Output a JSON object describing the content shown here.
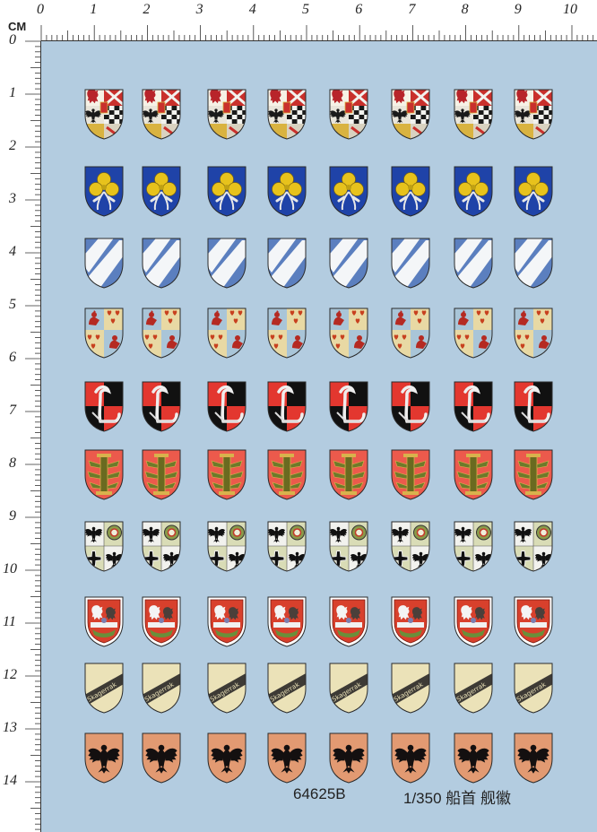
{
  "ruler": {
    "unit": "CM",
    "top_labels": [
      "0",
      "1",
      "2",
      "3",
      "4",
      "5",
      "6",
      "7",
      "8",
      "9",
      "10"
    ],
    "left_labels": [
      "0",
      "1",
      "2",
      "3",
      "4",
      "5",
      "6",
      "7",
      "8",
      "9",
      "10",
      "11",
      "12",
      "13",
      "14"
    ]
  },
  "sheet": {
    "code": "64625B",
    "scale_title": "1/350 船首 舰徽",
    "background_color": "#b3cce0"
  },
  "rows": [
    {
      "crest": "quartered-eagle-checker-crest",
      "count": 8
    },
    {
      "crest": "blue-gold-clover-crest",
      "count": 8
    },
    {
      "crest": "blue-white-bend-crest",
      "count": 8
    },
    {
      "crest": "rooster-heart-quarterly-crest",
      "count": 8
    },
    {
      "crest": "red-black-swan-crest",
      "count": 8
    },
    {
      "crest": "red-green-column-crest",
      "count": 8
    },
    {
      "crest": "eagle-iron-cross-quarterly-crest",
      "count": 8
    },
    {
      "crest": "red-lion-crest",
      "count": 8
    },
    {
      "crest": "skagerrak-band-crest",
      "count": 8,
      "band_text": "Skagerrak"
    },
    {
      "crest": "black-eagle-crest",
      "count": 8
    }
  ]
}
